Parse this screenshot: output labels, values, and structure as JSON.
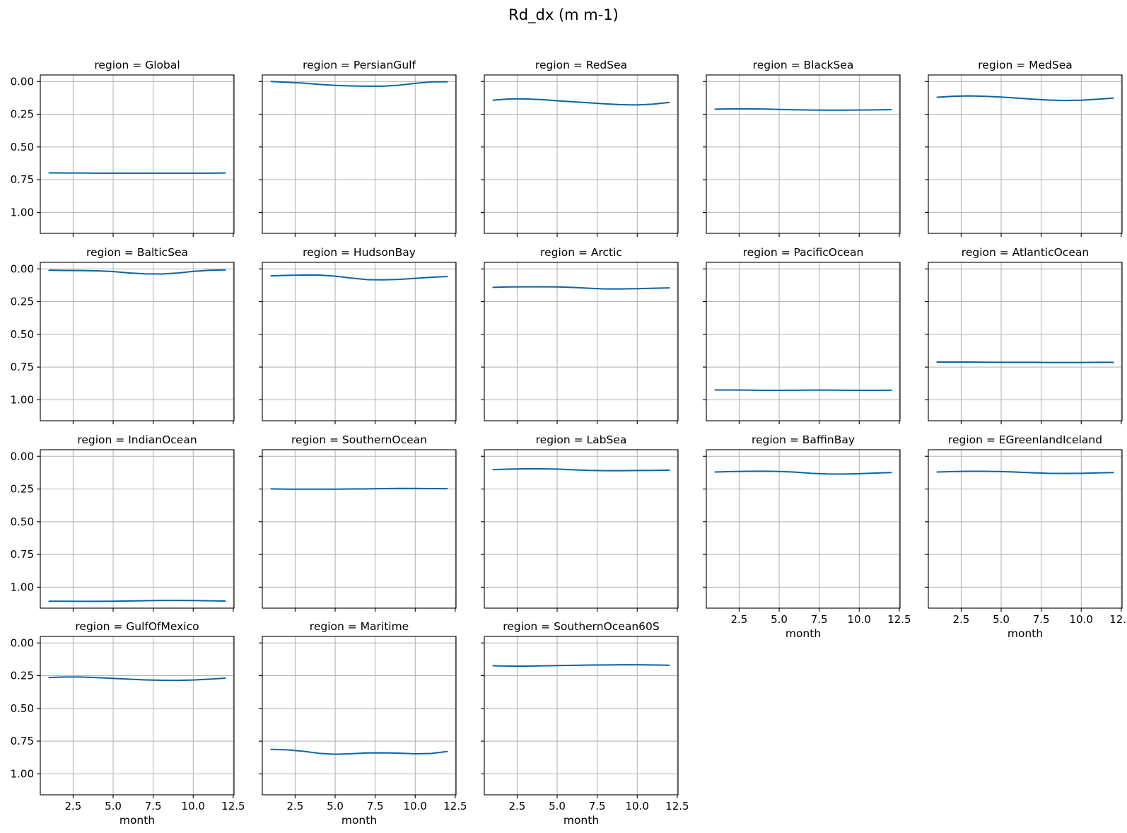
{
  "title": "Rd_dx (m m-1)",
  "colors": {
    "line": "#0a64a4",
    "grid": "#b0b0b0"
  },
  "chart_data": {
    "type": "line",
    "layout": "facet-grid-4x5",
    "xlabel": "month",
    "ylabel": "",
    "xlim": [
      0.45,
      12.55
    ],
    "ylim": [
      1.16,
      -0.05
    ],
    "y_inverted": true,
    "grid": true,
    "xticks": [
      2.5,
      5.0,
      7.5,
      10.0,
      12.5
    ],
    "xtick_labels": [
      "2.5",
      "5.0",
      "7.5",
      "10.0",
      "12.5"
    ],
    "yticks": [
      0.0,
      0.25,
      0.5,
      0.75,
      1.0
    ],
    "ytick_labels": [
      "0.00",
      "0.25",
      "0.50",
      "0.75",
      "1.00"
    ],
    "x": [
      1,
      2,
      3,
      4,
      5,
      6,
      7,
      8,
      9,
      10,
      11,
      12
    ],
    "panels": [
      {
        "title": "region = Global",
        "values": [
          0.698,
          0.699,
          0.699,
          0.7,
          0.7,
          0.7,
          0.7,
          0.7,
          0.7,
          0.7,
          0.7,
          0.699
        ]
      },
      {
        "title": "region = PersianGulf",
        "values": [
          0.0,
          0.006,
          0.012,
          0.022,
          0.03,
          0.034,
          0.036,
          0.036,
          0.028,
          0.014,
          0.003,
          0.002
        ]
      },
      {
        "title": "region = RedSea",
        "values": [
          0.143,
          0.133,
          0.133,
          0.138,
          0.147,
          0.155,
          0.163,
          0.171,
          0.177,
          0.179,
          0.173,
          0.16
        ]
      },
      {
        "title": "region = BlackSea",
        "values": [
          0.211,
          0.209,
          0.209,
          0.21,
          0.213,
          0.216,
          0.218,
          0.219,
          0.219,
          0.218,
          0.217,
          0.215
        ]
      },
      {
        "title": "region = MedSea",
        "values": [
          0.12,
          0.113,
          0.11,
          0.113,
          0.119,
          0.127,
          0.135,
          0.142,
          0.145,
          0.143,
          0.136,
          0.127
        ]
      },
      {
        "title": "region = BalticSea",
        "values": [
          0.01,
          0.012,
          0.013,
          0.015,
          0.02,
          0.031,
          0.038,
          0.039,
          0.032,
          0.019,
          0.011,
          0.008
        ]
      },
      {
        "title": "region = HudsonBay",
        "values": [
          0.053,
          0.049,
          0.047,
          0.047,
          0.055,
          0.07,
          0.082,
          0.084,
          0.08,
          0.072,
          0.064,
          0.058
        ]
      },
      {
        "title": "region = Arctic",
        "values": [
          0.141,
          0.138,
          0.137,
          0.137,
          0.138,
          0.142,
          0.148,
          0.153,
          0.153,
          0.151,
          0.148,
          0.145
        ]
      },
      {
        "title": "region = PacificOcean",
        "values": [
          0.925,
          0.925,
          0.926,
          0.928,
          0.928,
          0.927,
          0.926,
          0.926,
          0.927,
          0.928,
          0.928,
          0.927
        ]
      },
      {
        "title": "region = AtlanticOcean",
        "values": [
          0.712,
          0.712,
          0.712,
          0.713,
          0.714,
          0.714,
          0.714,
          0.715,
          0.715,
          0.715,
          0.714,
          0.714
        ]
      },
      {
        "title": "region = IndianOcean",
        "values": [
          1.107,
          1.107,
          1.108,
          1.108,
          1.107,
          1.105,
          1.103,
          1.101,
          1.101,
          1.102,
          1.104,
          1.106
        ]
      },
      {
        "title": "region = SouthernOcean",
        "values": [
          0.249,
          0.251,
          0.251,
          0.251,
          0.251,
          0.25,
          0.249,
          0.247,
          0.246,
          0.246,
          0.247,
          0.248
        ]
      },
      {
        "title": "region = LabSea",
        "values": [
          0.102,
          0.098,
          0.096,
          0.096,
          0.098,
          0.103,
          0.108,
          0.11,
          0.11,
          0.109,
          0.108,
          0.106
        ]
      },
      {
        "title": "region = BaffinBay",
        "values": [
          0.12,
          0.117,
          0.115,
          0.114,
          0.116,
          0.121,
          0.13,
          0.135,
          0.136,
          0.133,
          0.128,
          0.124
        ]
      },
      {
        "title": "region = EGreenlandIceland",
        "values": [
          0.12,
          0.117,
          0.115,
          0.115,
          0.117,
          0.121,
          0.126,
          0.13,
          0.131,
          0.13,
          0.127,
          0.124
        ]
      },
      {
        "title": "region = GulfOfMexico",
        "values": [
          0.264,
          0.26,
          0.26,
          0.265,
          0.271,
          0.277,
          0.282,
          0.285,
          0.286,
          0.283,
          0.277,
          0.269
        ]
      },
      {
        "title": "region = Maritime",
        "values": [
          0.813,
          0.816,
          0.827,
          0.843,
          0.85,
          0.846,
          0.84,
          0.839,
          0.842,
          0.847,
          0.844,
          0.829
        ]
      },
      {
        "title": "region = SouthernOcean60S",
        "values": [
          0.174,
          0.177,
          0.177,
          0.175,
          0.173,
          0.171,
          0.169,
          0.168,
          0.167,
          0.167,
          0.168,
          0.17
        ]
      }
    ]
  }
}
